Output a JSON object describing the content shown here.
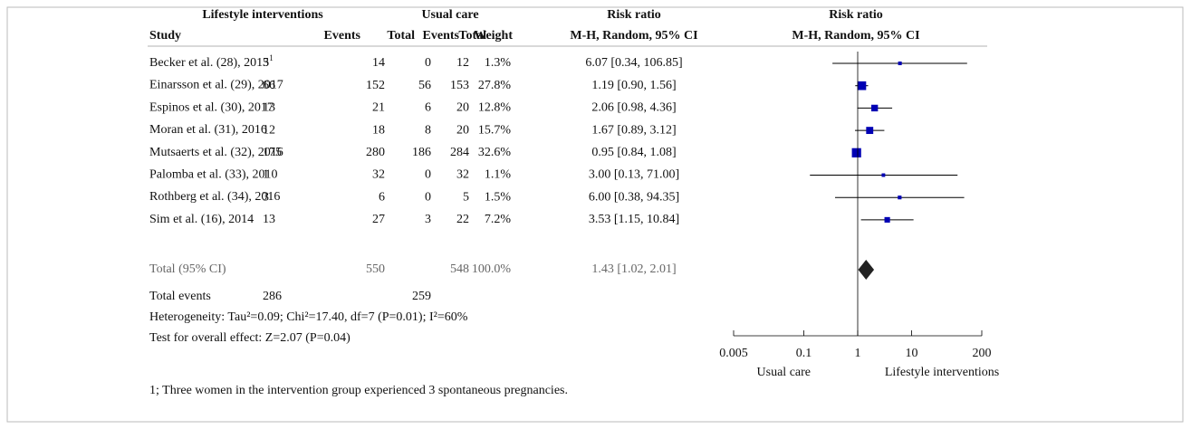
{
  "chart_data": {
    "type": "forest",
    "group_headers": [
      "Lifestyle interventions",
      "Usual care",
      "Risk ratio",
      "Risk ratio"
    ],
    "columns": [
      "Study",
      "Events",
      "Total",
      "Events",
      "Total",
      "Weight",
      "M-H, Random, 95% CI",
      "M-H, Random, 95% CI"
    ],
    "studies": [
      {
        "name": "Becker et al. (28), 2015",
        "note": "1",
        "events_int": 3,
        "total_int": 14,
        "events_ctrl": 0,
        "total_ctrl": 12,
        "weight": 1.3,
        "weight_label": "1.3%",
        "rr": 6.07,
        "lo": 0.34,
        "hi": 106.85,
        "rr_label": "6.07 [0.34, 106.85]"
      },
      {
        "name": "Einarsson et al. (29), 2017",
        "events_int": 66,
        "total_int": 152,
        "events_ctrl": 56,
        "total_ctrl": 153,
        "weight": 27.8,
        "weight_label": "27.8%",
        "rr": 1.19,
        "lo": 0.9,
        "hi": 1.56,
        "rr_label": "1.19 [0.90, 1.56]"
      },
      {
        "name": "Espinos et al. (30), 2017",
        "events_int": 13,
        "total_int": 21,
        "events_ctrl": 6,
        "total_ctrl": 20,
        "weight": 12.8,
        "weight_label": "12.8%",
        "rr": 2.06,
        "lo": 0.98,
        "hi": 4.36,
        "rr_label": "2.06 [0.98, 4.36]"
      },
      {
        "name": "Moran et al. (31), 2016",
        "events_int": 12,
        "total_int": 18,
        "events_ctrl": 8,
        "total_ctrl": 20,
        "weight": 15.7,
        "weight_label": "15.7%",
        "rr": 1.67,
        "lo": 0.89,
        "hi": 3.12,
        "rr_label": "1.67 [0.89, 3.12]"
      },
      {
        "name": "Mutsaerts et al. (32), 2016",
        "events_int": 175,
        "total_int": 280,
        "events_ctrl": 186,
        "total_ctrl": 284,
        "weight": 32.6,
        "weight_label": "32.6%",
        "rr": 0.95,
        "lo": 0.84,
        "hi": 1.08,
        "rr_label": "0.95 [0.84, 1.08]"
      },
      {
        "name": "Palomba et al. (33), 2010",
        "events_int": 1,
        "total_int": 32,
        "events_ctrl": 0,
        "total_ctrl": 32,
        "weight": 1.1,
        "weight_label": "1.1%",
        "rr": 3.0,
        "lo": 0.13,
        "hi": 71.0,
        "rr_label": "3.00 [0.13, 71.00]"
      },
      {
        "name": "Rothberg et al. (34), 2016",
        "events_int": 3,
        "total_int": 6,
        "events_ctrl": 0,
        "total_ctrl": 5,
        "weight": 1.5,
        "weight_label": "1.5%",
        "rr": 6.0,
        "lo": 0.38,
        "hi": 94.35,
        "rr_label": "6.00 [0.38, 94.35]"
      },
      {
        "name": "Sim et al. (16), 2014",
        "events_int": 13,
        "total_int": 27,
        "events_ctrl": 3,
        "total_ctrl": 22,
        "weight": 7.2,
        "weight_label": "7.2%",
        "rr": 3.53,
        "lo": 1.15,
        "hi": 10.84,
        "rr_label": "3.53 [1.15, 10.84]"
      }
    ],
    "total": {
      "name": "Total (95% CI)",
      "total_int": 550,
      "total_ctrl": 548,
      "weight": 100.0,
      "weight_label": "100.0%",
      "rr": 1.43,
      "lo": 1.02,
      "hi": 2.01,
      "rr_label": "1.43 [1.02, 2.01]"
    },
    "total_events": {
      "name": "Total events",
      "events_int": 286,
      "events_ctrl": 259
    },
    "heterogeneity": "Heterogeneity: Tau²=0.09; Chi²=17.40, df=7 (P=0.01); I²=60%",
    "overall_effect": "Test for overall effect: Z=2.07 (P=0.04)",
    "x_scale": "log",
    "xlim": [
      0.005,
      200
    ],
    "xticks": [
      0.005,
      0.1,
      1,
      10,
      200
    ],
    "x_left_label": "Usual care",
    "x_right_label": "Lifestyle interventions",
    "square_color": "#0000b4",
    "diamond_color": "#222222",
    "footnote": "1; Three women in the intervention group experienced 3 spontaneous pregnancies."
  }
}
